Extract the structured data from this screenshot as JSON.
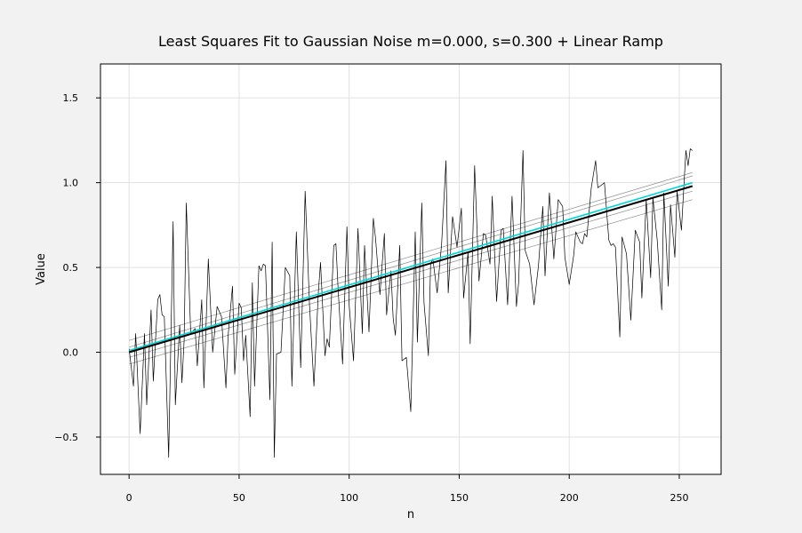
{
  "chart_data": {
    "type": "line",
    "title": "Least Squares Fit to Gaussian Noise m=0.000, s=0.300 + Linear Ramp",
    "xlabel": "n",
    "ylabel": "Value",
    "xlim": [
      -13,
      269
    ],
    "ylim": [
      -0.72,
      1.7
    ],
    "x_ticks": [
      0,
      50,
      100,
      150,
      200,
      250
    ],
    "y_ticks": [
      -0.5,
      0.0,
      0.5,
      1.0,
      1.5
    ],
    "x_tick_labels": [
      "0",
      "50",
      "100",
      "150",
      "200",
      "250"
    ],
    "y_tick_labels": [
      "−0.5",
      "0.0",
      "0.5",
      "1.0",
      "1.5"
    ],
    "grid": true,
    "legend": "none",
    "noise": {
      "mean": 0.0,
      "sigma": 0.3,
      "n_points": 256
    },
    "series": [
      {
        "role": "noisy-data",
        "color": "#000000",
        "points": [
          [
            0,
            0.02
          ],
          [
            2,
            -0.2
          ],
          [
            3,
            0.11
          ],
          [
            5,
            -0.48
          ],
          [
            7,
            0.11
          ],
          [
            8,
            -0.31
          ],
          [
            10,
            0.25
          ],
          [
            11,
            -0.17
          ],
          [
            13,
            0.31
          ],
          [
            14,
            0.34
          ],
          [
            15,
            0.22
          ],
          [
            16,
            0.21
          ],
          [
            18,
            -0.62
          ],
          [
            20,
            0.77
          ],
          [
            21,
            -0.31
          ],
          [
            23,
            0.16
          ],
          [
            24,
            -0.18
          ],
          [
            25,
            0.07
          ],
          [
            26,
            0.88
          ],
          [
            28,
            0.11
          ],
          [
            30,
            0.14
          ],
          [
            31,
            -0.08
          ],
          [
            33,
            0.31
          ],
          [
            34,
            -0.21
          ],
          [
            36,
            0.55
          ],
          [
            38,
            0.0
          ],
          [
            40,
            0.27
          ],
          [
            42,
            0.21
          ],
          [
            44,
            -0.21
          ],
          [
            45,
            0.1
          ],
          [
            47,
            0.39
          ],
          [
            48,
            -0.13
          ],
          [
            50,
            0.29
          ],
          [
            51,
            0.26
          ],
          [
            52,
            -0.05
          ],
          [
            53,
            0.1
          ],
          [
            55,
            -0.38
          ],
          [
            56,
            0.41
          ],
          [
            57,
            -0.2
          ],
          [
            59,
            0.51
          ],
          [
            60,
            0.48
          ],
          [
            61,
            0.52
          ],
          [
            62,
            0.51
          ],
          [
            64,
            -0.28
          ],
          [
            65,
            0.65
          ],
          [
            66,
            -0.62
          ],
          [
            67,
            -0.01
          ],
          [
            69,
            0.0
          ],
          [
            71,
            0.5
          ],
          [
            73,
            0.45
          ],
          [
            74,
            -0.2
          ],
          [
            76,
            0.71
          ],
          [
            78,
            -0.09
          ],
          [
            80,
            0.95
          ],
          [
            82,
            0.28
          ],
          [
            84,
            -0.2
          ],
          [
            86,
            0.35
          ],
          [
            87,
            0.53
          ],
          [
            89,
            -0.02
          ],
          [
            90,
            0.08
          ],
          [
            91,
            0.03
          ],
          [
            93,
            0.63
          ],
          [
            94,
            0.64
          ],
          [
            95,
            0.37
          ],
          [
            97,
            -0.07
          ],
          [
            99,
            0.74
          ],
          [
            100,
            0.28
          ],
          [
            102,
            -0.05
          ],
          [
            104,
            0.73
          ],
          [
            106,
            0.11
          ],
          [
            107,
            0.63
          ],
          [
            109,
            0.12
          ],
          [
            111,
            0.79
          ],
          [
            112,
            0.67
          ],
          [
            114,
            0.34
          ],
          [
            116,
            0.7
          ],
          [
            117,
            0.22
          ],
          [
            119,
            0.48
          ],
          [
            120,
            0.2
          ],
          [
            121,
            0.1
          ],
          [
            123,
            0.63
          ],
          [
            124,
            -0.05
          ],
          [
            126,
            -0.03
          ],
          [
            128,
            -0.35
          ],
          [
            130,
            0.71
          ],
          [
            131,
            0.06
          ],
          [
            133,
            0.88
          ],
          [
            134,
            0.29
          ],
          [
            136,
            -0.02
          ],
          [
            137,
            0.52
          ],
          [
            138,
            0.55
          ],
          [
            140,
            0.35
          ],
          [
            142,
            0.64
          ],
          [
            144,
            1.13
          ],
          [
            145,
            0.35
          ],
          [
            147,
            0.8
          ],
          [
            149,
            0.62
          ],
          [
            151,
            0.85
          ],
          [
            152,
            0.32
          ],
          [
            154,
            0.59
          ],
          [
            155,
            0.05
          ],
          [
            157,
            1.1
          ],
          [
            159,
            0.42
          ],
          [
            161,
            0.7
          ],
          [
            162,
            0.69
          ],
          [
            164,
            0.52
          ],
          [
            165,
            0.92
          ],
          [
            167,
            0.3
          ],
          [
            169,
            0.72
          ],
          [
            170,
            0.73
          ],
          [
            172,
            0.28
          ],
          [
            174,
            0.92
          ],
          [
            176,
            0.27
          ],
          [
            177,
            0.41
          ],
          [
            179,
            1.19
          ],
          [
            180,
            0.6
          ],
          [
            182,
            0.52
          ],
          [
            184,
            0.28
          ],
          [
            186,
            0.51
          ],
          [
            188,
            0.86
          ],
          [
            189,
            0.45
          ],
          [
            191,
            0.94
          ],
          [
            193,
            0.55
          ],
          [
            195,
            0.9
          ],
          [
            197,
            0.86
          ],
          [
            198,
            0.56
          ],
          [
            200,
            0.4
          ],
          [
            202,
            0.57
          ],
          [
            203,
            0.71
          ],
          [
            205,
            0.65
          ],
          [
            206,
            0.64
          ],
          [
            207,
            0.7
          ],
          [
            208,
            0.68
          ],
          [
            210,
            0.97
          ],
          [
            212,
            1.13
          ],
          [
            213,
            0.97
          ],
          [
            214,
            0.98
          ],
          [
            216,
            1.0
          ],
          [
            218,
            0.66
          ],
          [
            219,
            0.63
          ],
          [
            220,
            0.64
          ],
          [
            221,
            0.62
          ],
          [
            223,
            0.09
          ],
          [
            224,
            0.68
          ],
          [
            226,
            0.58
          ],
          [
            228,
            0.19
          ],
          [
            230,
            0.72
          ],
          [
            232,
            0.65
          ],
          [
            233,
            0.32
          ],
          [
            235,
            0.9
          ],
          [
            237,
            0.44
          ],
          [
            238,
            0.91
          ],
          [
            240,
            0.66
          ],
          [
            242,
            0.25
          ],
          [
            243,
            0.94
          ],
          [
            245,
            0.39
          ],
          [
            246,
            0.87
          ],
          [
            248,
            0.56
          ],
          [
            249,
            0.95
          ],
          [
            251,
            0.72
          ],
          [
            253,
            1.19
          ],
          [
            254,
            1.1
          ],
          [
            255,
            1.2
          ],
          [
            256,
            1.19
          ]
        ]
      },
      {
        "role": "true-ramp",
        "color": "#000000",
        "points": [
          [
            0,
            0.0
          ],
          [
            256,
            0.98
          ]
        ]
      },
      {
        "role": "least-squares-fit",
        "color": "#00d5d5",
        "points": [
          [
            0,
            0.01
          ],
          [
            256,
            1.0
          ]
        ]
      },
      {
        "role": "fit-envelope-upper-1",
        "color": "#808080",
        "points": [
          [
            0,
            0.03
          ],
          [
            256,
            1.04
          ]
        ]
      },
      {
        "role": "fit-envelope-upper-2",
        "color": "#808080",
        "points": [
          [
            0,
            0.07
          ],
          [
            256,
            1.06
          ]
        ]
      },
      {
        "role": "fit-envelope-lower-1",
        "color": "#808080",
        "points": [
          [
            0,
            -0.03
          ],
          [
            256,
            0.95
          ]
        ]
      },
      {
        "role": "fit-envelope-lower-2",
        "color": "#808080",
        "points": [
          [
            0,
            -0.07
          ],
          [
            256,
            0.9
          ]
        ]
      }
    ]
  }
}
